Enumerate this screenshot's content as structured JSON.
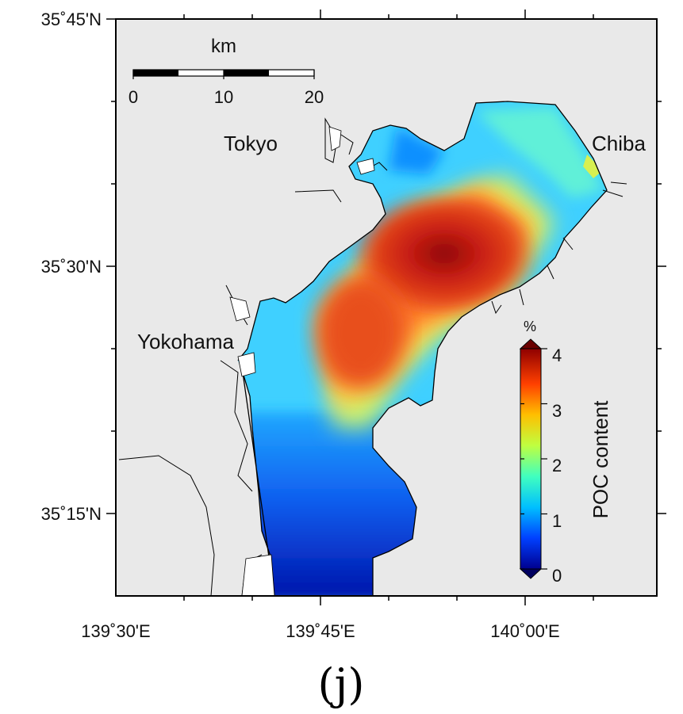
{
  "map": {
    "latitude_labels": [
      "35˚45'N",
      "35˚30'N",
      "35˚15'N"
    ],
    "longitude_labels": [
      "139˚30'E",
      "139˚45'E",
      "140˚00'E"
    ],
    "place_names": [
      "Tokyo",
      "Chiba",
      "Yokohama"
    ],
    "scale_bar": {
      "unit": "km",
      "tick_labels": [
        "0",
        "10",
        "20"
      ]
    },
    "colorbar": {
      "title": "POC content",
      "unit": "%",
      "min": 0,
      "max": 4,
      "tick_labels": [
        "0",
        "1",
        "2",
        "3",
        "4"
      ],
      "colormap": [
        "#00008f",
        "#0040ff",
        "#00bfff",
        "#40ffbf",
        "#bfff40",
        "#ffbf00",
        "#ff4000",
        "#8f0000"
      ]
    },
    "colors": {
      "land": "#e9e9e9",
      "frame": "#000000"
    }
  },
  "panel_label": "(j)"
}
